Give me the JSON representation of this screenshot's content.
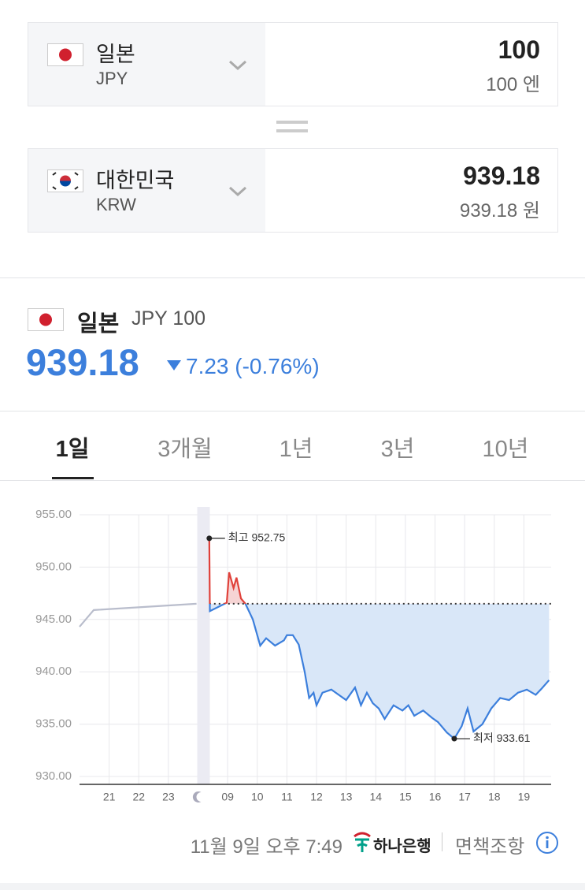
{
  "converter": [
    {
      "country": "일본",
      "code": "JPY",
      "amount": "100",
      "amount_label": "100 엔"
    },
    {
      "country": "대한민국",
      "code": "KRW",
      "amount": "939.18",
      "amount_label": "939.18 원"
    }
  ],
  "summary": {
    "country": "일본",
    "pair": "JPY 100",
    "rate": "939.18",
    "change": "7.23 (-0.76%)"
  },
  "tabs": [
    "1일",
    "3개월",
    "1년",
    "3년",
    "10년"
  ],
  "chart_data": {
    "type": "line",
    "xlim": [
      0,
      16
    ],
    "xticks": [
      {
        "value": 1,
        "label": "21"
      },
      {
        "value": 2,
        "label": "22"
      },
      {
        "value": 3,
        "label": "23"
      },
      {
        "value": 4,
        "label": null
      },
      {
        "value": 5,
        "label": "09"
      },
      {
        "value": 6,
        "label": "10"
      },
      {
        "value": 7,
        "label": "11"
      },
      {
        "value": 8,
        "label": "12"
      },
      {
        "value": 9,
        "label": "13"
      },
      {
        "value": 10,
        "label": "14"
      },
      {
        "value": 11,
        "label": "15"
      },
      {
        "value": 12,
        "label": "16"
      },
      {
        "value": 13,
        "label": "17"
      },
      {
        "value": 14,
        "label": "18"
      },
      {
        "value": 15,
        "label": "19"
      }
    ],
    "ylim": [
      930,
      955
    ],
    "yticks": [
      {
        "value": 930,
        "label": "930.00"
      },
      {
        "value": 935,
        "label": "935.00"
      },
      {
        "value": 940,
        "label": "940.00"
      },
      {
        "value": 945,
        "label": "945.00"
      },
      {
        "value": 950,
        "label": "950.00"
      },
      {
        "value": 955,
        "label": "955.00"
      }
    ],
    "grid": true,
    "baseline": 946.5,
    "above_color": "#e0413a",
    "fill_above": "#f6d4d4",
    "fill_below": "#d9e7f8",
    "series": [
      {
        "color": "#b9bdcc",
        "x": [
          0,
          0.48,
          3.95
        ],
        "values": [
          944.3,
          945.9,
          946.5
        ]
      },
      {
        "color": "#3c7fdc",
        "x": [
          4.38,
          4.4,
          4.97,
          5.05,
          5.2,
          5.3,
          5.45,
          5.6,
          5.85,
          5.95,
          6.1,
          6.3,
          6.6,
          6.9,
          7.0,
          7.2,
          7.4,
          7.6,
          7.75,
          7.9,
          8.0,
          8.2,
          8.5,
          8.8,
          9.0,
          9.3,
          9.5,
          9.7,
          9.9,
          10.1,
          10.3,
          10.6,
          10.9,
          11.1,
          11.3,
          11.6,
          11.9,
          12.1,
          12.4,
          12.65,
          12.9,
          13.1,
          13.3,
          13.6,
          13.9,
          14.2,
          14.5,
          14.8,
          15.1,
          15.4,
          15.6,
          15.85
        ],
        "values": [
          952.75,
          945.8,
          946.6,
          949.5,
          948,
          949,
          947,
          946.5,
          945,
          944,
          942.5,
          943.2,
          942.5,
          943,
          943.5,
          943.5,
          942.6,
          940,
          937.5,
          938,
          936.8,
          938,
          938.3,
          937.7,
          937.3,
          938.5,
          936.8,
          938,
          937,
          936.5,
          935.5,
          936.8,
          936.3,
          936.8,
          935.8,
          936.3,
          935.6,
          935.2,
          934.2,
          933.61,
          934.8,
          936.5,
          934.3,
          935,
          936.5,
          937.5,
          937.3,
          938,
          938.3,
          937.8,
          938.4,
          939.2
        ]
      }
    ],
    "annotations": [
      {
        "label": "최고 952.75",
        "x": 4.38,
        "value": 952.75
      },
      {
        "label": "최저 933.61",
        "x": 12.65,
        "value": 933.61
      }
    ]
  },
  "footer": {
    "timestamp": "11월 9일 오후 7:49",
    "bank": "하나은행",
    "disclaimer": "면책조항"
  }
}
